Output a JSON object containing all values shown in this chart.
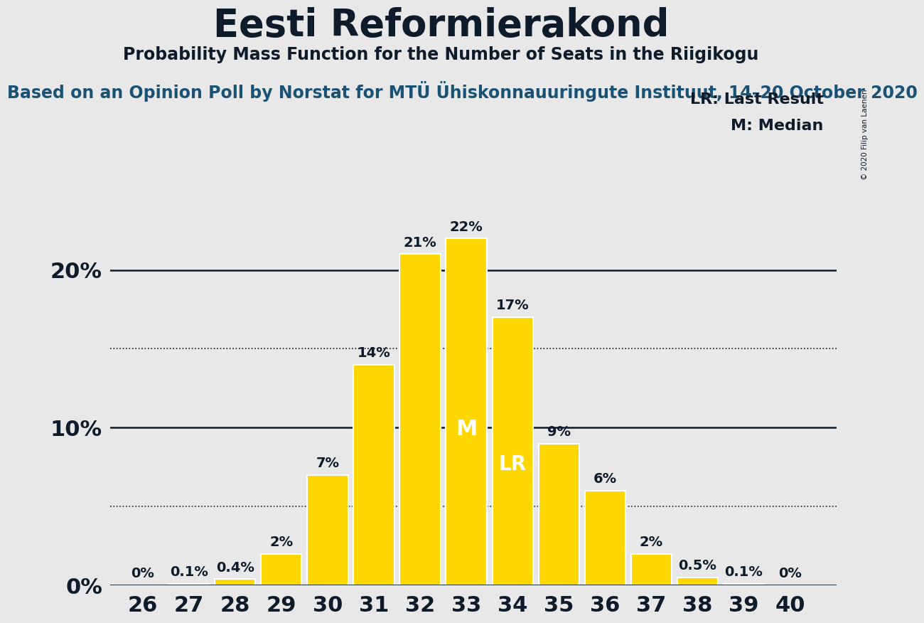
{
  "title": "Eesti Reformierakond",
  "subtitle": "Probability Mass Function for the Number of Seats in the Riigikogu",
  "source_text": "Based on an Opinion Poll by Norstat for MTÜ Ühiskonnauuringute Instituut, 14–20 October 2020",
  "copyright_text": "© 2020 Filip van Laenen",
  "legend_lr": "LR: Last Result",
  "legend_m": "M: Median",
  "seats": [
    26,
    27,
    28,
    29,
    30,
    31,
    32,
    33,
    34,
    35,
    36,
    37,
    38,
    39,
    40
  ],
  "probabilities": [
    0.0,
    0.1,
    0.4,
    2.0,
    7.0,
    14.0,
    21.0,
    22.0,
    17.0,
    9.0,
    6.0,
    2.0,
    0.5,
    0.1,
    0.0
  ],
  "bar_color": "#FFD700",
  "bar_edge_color": "#FFFFFF",
  "background_color": "#E8E8E8",
  "text_color": "#0D1B2A",
  "median_seat": 33,
  "lr_seat": 34,
  "title_fontsize": 38,
  "subtitle_fontsize": 17,
  "source_fontsize": 17,
  "tick_fontsize": 22,
  "label_fontsize": 14,
  "ytick_labels": [
    "0%",
    "10%",
    "20%"
  ],
  "ytick_values": [
    0,
    10,
    20
  ],
  "ylim": [
    0,
    25
  ],
  "dotted_lines": [
    5,
    15
  ],
  "solid_lines": [
    10,
    20
  ]
}
